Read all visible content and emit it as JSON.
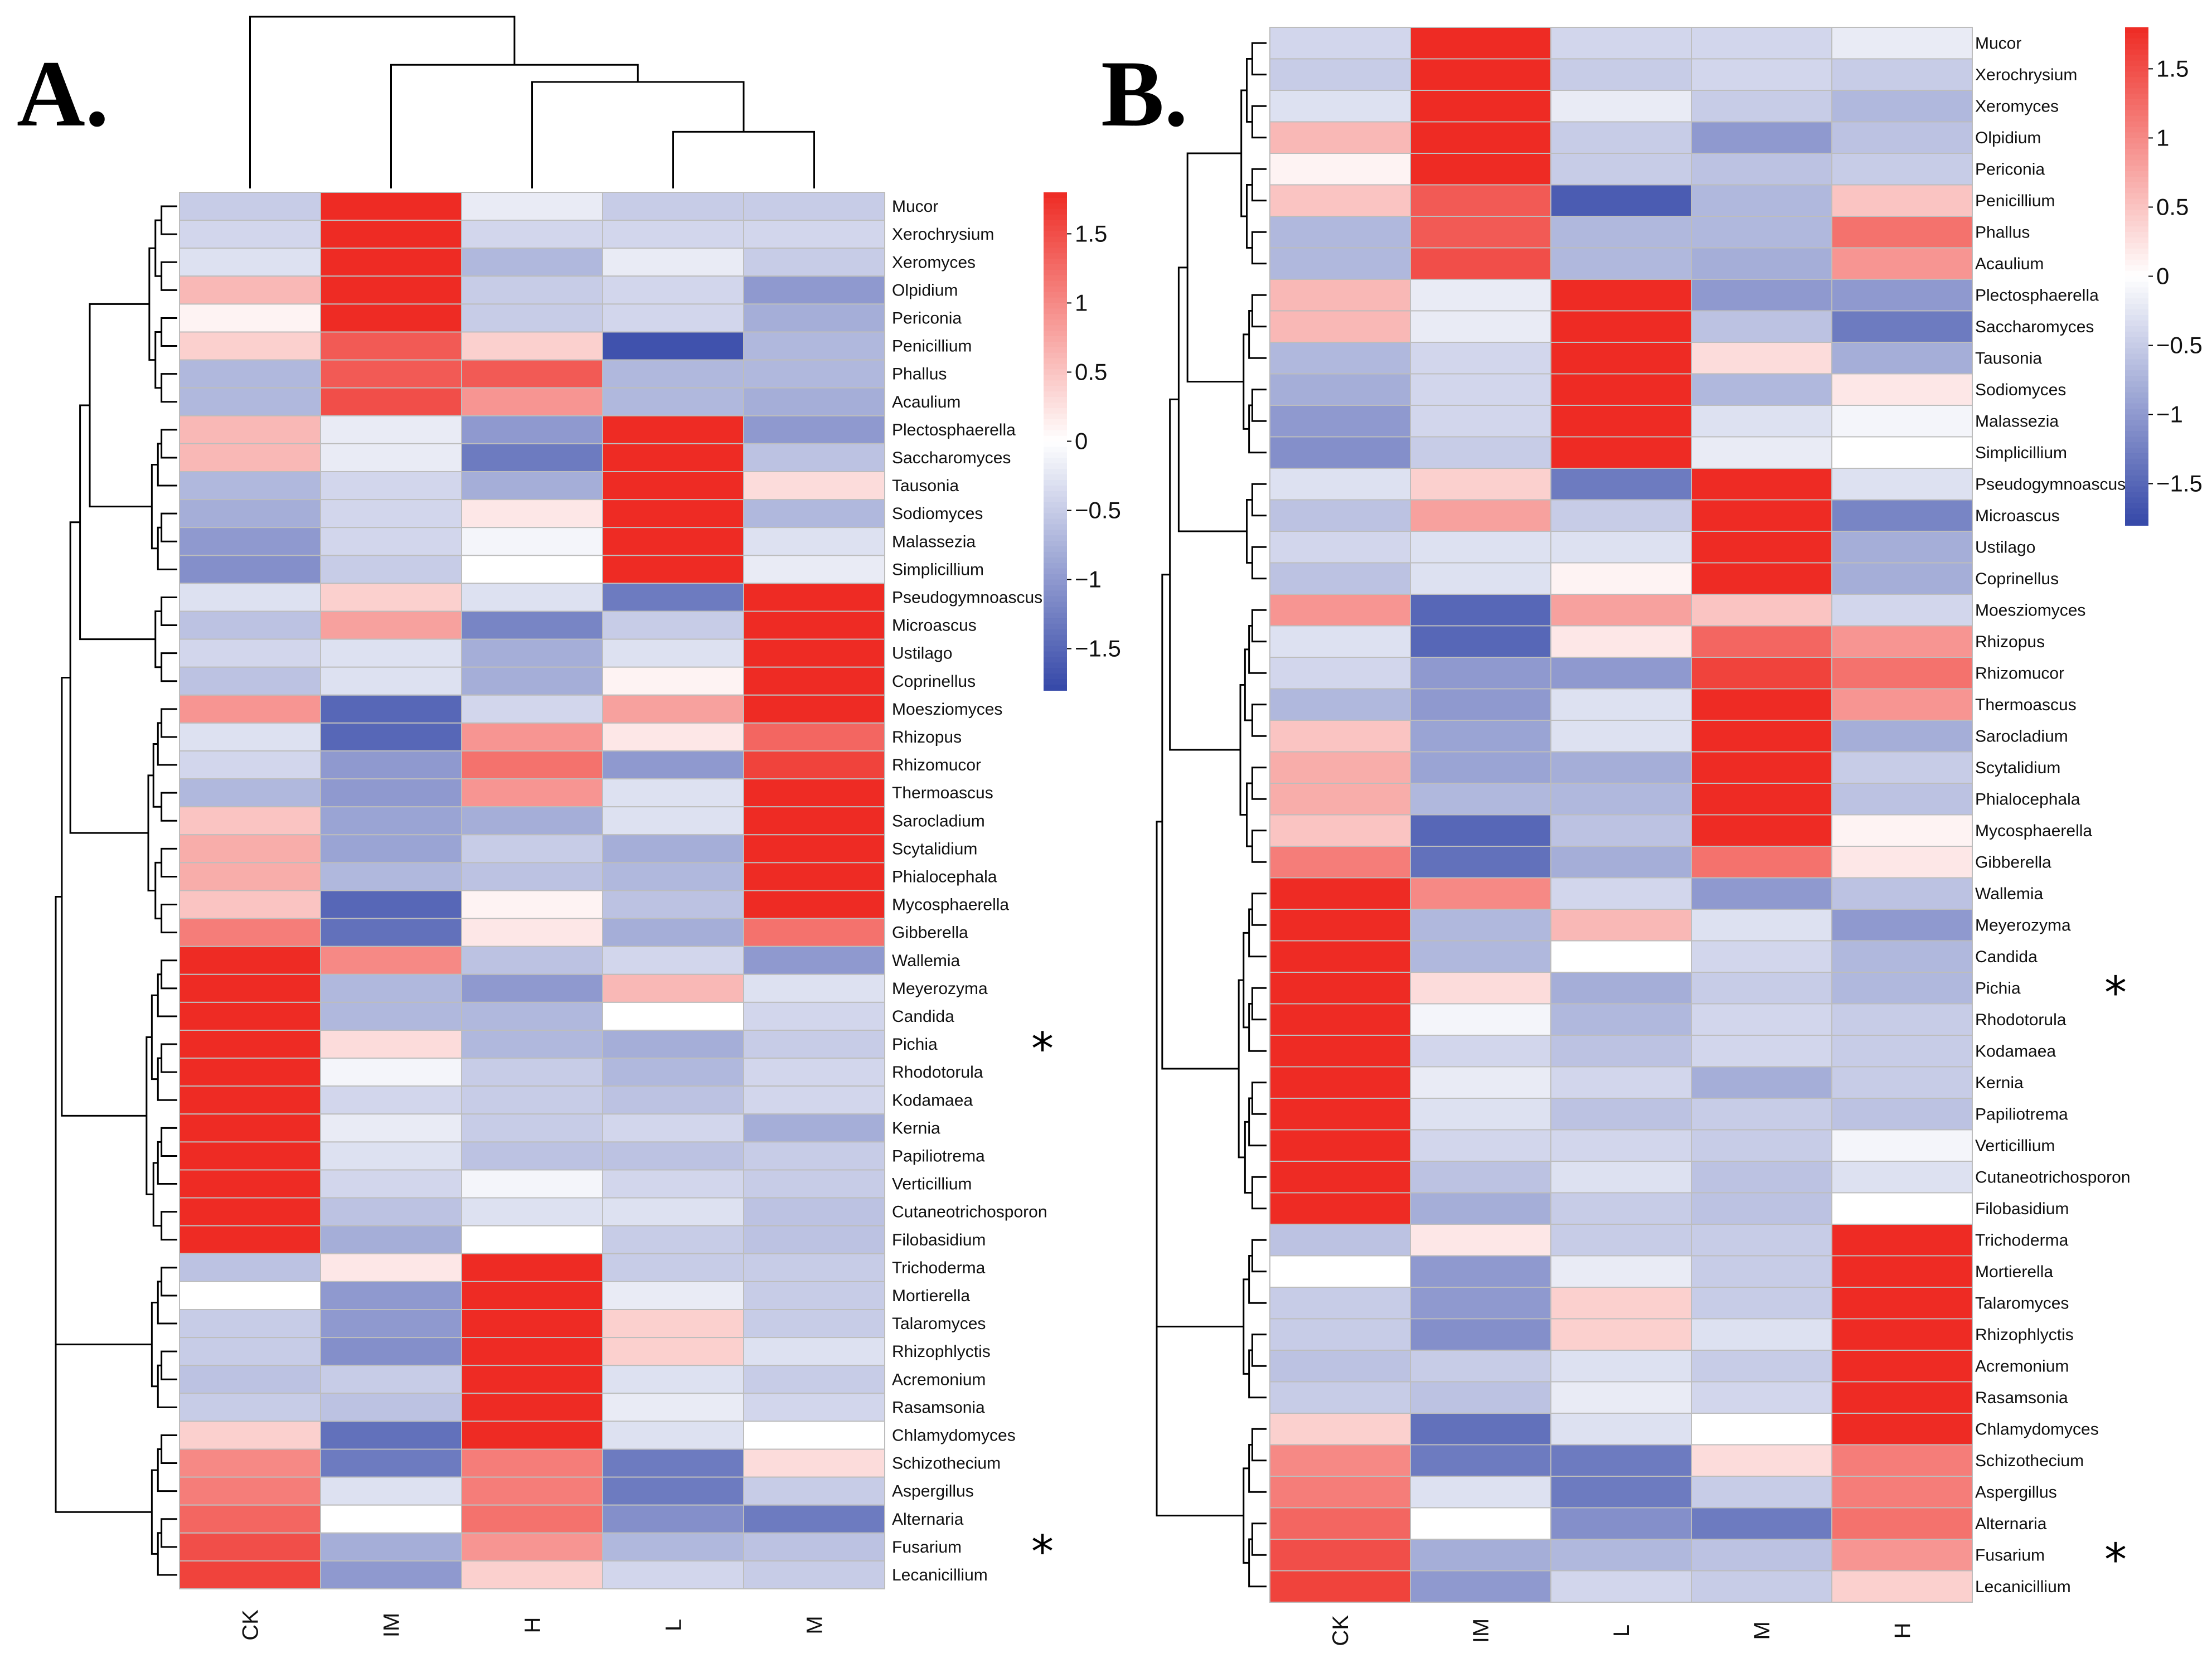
{
  "chart_data": [
    {
      "type": "heatmap",
      "panel_label": "A.",
      "columns": [
        "CK",
        "IM",
        "H",
        "L",
        "M"
      ],
      "rows": [
        "Mucor",
        "Xerochrysium",
        "Xeromyces",
        "Olpidium",
        "Periconia",
        "Penicillium",
        "Phallus",
        "Acaulium",
        "Plectosphaerella",
        "Saccharomyces",
        "Tausonia",
        "Sodiomyces",
        "Malassezia",
        "Simplicillium",
        "Pseudogymnoascus",
        "Microascus",
        "Ustilago",
        "Coprinellus",
        "Moesziomyces",
        "Rhizopus",
        "Rhizomucor",
        "Thermoascus",
        "Sarocladium",
        "Scytalidium",
        "Phialocephala",
        "Mycosphaerella",
        "Gibberella",
        "Wallemia",
        "Meyerozyma",
        "Candida",
        "Pichia",
        "Rhodotorula",
        "Kodamaea",
        "Kernia",
        "Papiliotrema",
        "Verticillium",
        "Cutaneotrichosporon",
        "Filobasidium",
        "Trichoderma",
        "Mortierella",
        "Talaromyces",
        "Rhizophlyctis",
        "Acremonium",
        "Rasamsonia",
        "Chlamydomyces",
        "Schizothecium",
        "Aspergillus",
        "Alternaria",
        "Fusarium",
        "Lecanicillium"
      ],
      "values": [
        [
          -0.5,
          1.8,
          -0.2,
          -0.5,
          -0.5
        ],
        [
          -0.4,
          1.8,
          -0.4,
          -0.4,
          -0.4
        ],
        [
          -0.3,
          1.8,
          -0.7,
          -0.2,
          -0.5
        ],
        [
          0.6,
          1.8,
          -0.5,
          -0.4,
          -1.0
        ],
        [
          0.1,
          1.8,
          -0.5,
          -0.4,
          -0.8
        ],
        [
          0.4,
          1.4,
          0.4,
          -1.7,
          -0.7
        ],
        [
          -0.7,
          1.4,
          1.4,
          -0.7,
          -0.7
        ],
        [
          -0.7,
          1.5,
          0.9,
          -0.7,
          -0.8
        ],
        [
          0.6,
          -0.2,
          -1.0,
          1.8,
          -1.0
        ],
        [
          0.6,
          -0.2,
          -1.3,
          1.8,
          -0.6
        ],
        [
          -0.7,
          -0.4,
          -0.8,
          1.8,
          0.3
        ],
        [
          -0.8,
          -0.4,
          0.2,
          1.8,
          -0.7
        ],
        [
          -1.0,
          -0.4,
          -0.1,
          1.8,
          -0.3
        ],
        [
          -1.1,
          -0.5,
          0.0,
          1.8,
          -0.2
        ],
        [
          -0.3,
          0.4,
          -0.3,
          -1.3,
          1.8
        ],
        [
          -0.6,
          0.8,
          -1.2,
          -0.5,
          1.8
        ],
        [
          -0.4,
          -0.3,
          -0.8,
          -0.3,
          1.8
        ],
        [
          -0.6,
          -0.3,
          -0.8,
          0.1,
          1.8
        ],
        [
          0.9,
          -1.5,
          -0.4,
          0.8,
          1.8
        ],
        [
          -0.3,
          -1.5,
          0.9,
          0.2,
          1.3
        ],
        [
          -0.4,
          -1.0,
          1.2,
          -1.0,
          1.6
        ],
        [
          -0.7,
          -1.0,
          0.9,
          -0.3,
          1.8
        ],
        [
          0.5,
          -0.9,
          -0.8,
          -0.3,
          1.8
        ],
        [
          0.7,
          -0.9,
          -0.5,
          -0.8,
          1.8
        ],
        [
          0.7,
          -0.7,
          -0.6,
          -0.7,
          1.8
        ],
        [
          0.5,
          -1.5,
          0.1,
          -0.6,
          1.8
        ],
        [
          1.1,
          -1.4,
          0.2,
          -0.8,
          1.2
        ],
        [
          1.8,
          1.0,
          -0.6,
          -0.4,
          -1.0
        ],
        [
          1.8,
          -0.7,
          -1.0,
          0.6,
          -0.3
        ],
        [
          1.8,
          -0.7,
          -0.7,
          0.0,
          -0.4
        ],
        [
          1.8,
          0.3,
          -0.7,
          -0.8,
          -0.5
        ],
        [
          1.8,
          -0.1,
          -0.5,
          -0.7,
          -0.4
        ],
        [
          1.8,
          -0.4,
          -0.5,
          -0.6,
          -0.4
        ],
        [
          1.8,
          -0.2,
          -0.5,
          -0.4,
          -0.8
        ],
        [
          1.8,
          -0.3,
          -0.6,
          -0.6,
          -0.5
        ],
        [
          1.8,
          -0.4,
          -0.1,
          -0.4,
          -0.5
        ],
        [
          1.8,
          -0.6,
          -0.3,
          -0.3,
          -0.6
        ],
        [
          1.8,
          -0.8,
          0.0,
          -0.5,
          -0.6
        ],
        [
          -0.6,
          0.2,
          1.8,
          -0.5,
          -0.5
        ],
        [
          0.0,
          -1.0,
          1.8,
          -0.2,
          -0.5
        ],
        [
          -0.5,
          -1.0,
          1.8,
          0.4,
          -0.5
        ],
        [
          -0.5,
          -1.1,
          1.8,
          0.4,
          -0.3
        ],
        [
          -0.6,
          -0.5,
          1.8,
          -0.3,
          -0.5
        ],
        [
          -0.5,
          -0.6,
          1.8,
          -0.2,
          -0.4
        ],
        [
          0.4,
          -1.4,
          1.8,
          -0.3,
          0.0
        ],
        [
          1.0,
          -1.3,
          1.1,
          -1.3,
          0.3
        ],
        [
          1.1,
          -0.3,
          1.1,
          -1.3,
          -0.5
        ],
        [
          1.3,
          0.0,
          1.2,
          -1.1,
          -1.3
        ],
        [
          1.5,
          -0.8,
          0.9,
          -0.7,
          -0.6
        ],
        [
          1.6,
          -1.0,
          0.4,
          -0.4,
          -0.5
        ]
      ],
      "starred_rows": [
        "Pichia",
        "Fusarium"
      ],
      "star_symbol": "*",
      "colorbar": {
        "min": -1.8,
        "max": 1.8,
        "ticks": [
          1.5,
          1,
          0.5,
          0,
          -0.5,
          -1,
          -1.5
        ],
        "tick_labels": [
          "1.5",
          "1",
          "0.5",
          "0",
          "−0.5",
          "−1",
          "−1.5"
        ],
        "colors": {
          "low": "#3548a8",
          "mid": "#ffffff",
          "high": "#ee2b24"
        }
      }
    },
    {
      "type": "heatmap",
      "panel_label": "B.",
      "columns": [
        "CK",
        "IM",
        "L",
        "M",
        "H"
      ],
      "rows": [
        "Mucor",
        "Xerochrysium",
        "Xeromyces",
        "Olpidium",
        "Periconia",
        "Penicillium",
        "Phallus",
        "Acaulium",
        "Plectosphaerella",
        "Saccharomyces",
        "Tausonia",
        "Sodiomyces",
        "Malassezia",
        "Simplicillium",
        "Pseudogymnoascus",
        "Microascus",
        "Ustilago",
        "Coprinellus",
        "Moesziomyces",
        "Rhizopus",
        "Rhizomucor",
        "Thermoascus",
        "Sarocladium",
        "Scytalidium",
        "Phialocephala",
        "Mycosphaerella",
        "Gibberella",
        "Wallemia",
        "Meyerozyma",
        "Candida",
        "Pichia",
        "Rhodotorula",
        "Kodamaea",
        "Kernia",
        "Papiliotrema",
        "Verticillium",
        "Cutaneotrichosporon",
        "Filobasidium",
        "Trichoderma",
        "Mortierella",
        "Talaromyces",
        "Rhizophlyctis",
        "Acremonium",
        "Rasamsonia",
        "Chlamydomyces",
        "Schizothecium",
        "Aspergillus",
        "Alternaria",
        "Fusarium",
        "Lecanicillium"
      ],
      "values": [
        [
          -0.4,
          1.8,
          -0.4,
          -0.4,
          -0.2
        ],
        [
          -0.5,
          1.8,
          -0.5,
          -0.4,
          -0.5
        ],
        [
          -0.3,
          1.8,
          -0.2,
          -0.5,
          -0.7
        ],
        [
          0.6,
          1.8,
          -0.5,
          -1.0,
          -0.6
        ],
        [
          0.1,
          1.8,
          -0.5,
          -0.6,
          -0.5
        ],
        [
          0.5,
          1.4,
          -1.6,
          -0.7,
          0.5
        ],
        [
          -0.7,
          1.4,
          -0.7,
          -0.7,
          1.2
        ],
        [
          -0.7,
          1.5,
          -0.7,
          -0.8,
          0.9
        ],
        [
          0.6,
          -0.2,
          1.8,
          -1.0,
          -1.0
        ],
        [
          0.6,
          -0.2,
          1.8,
          -0.6,
          -1.3
        ],
        [
          -0.7,
          -0.4,
          1.8,
          0.3,
          -0.8
        ],
        [
          -0.8,
          -0.4,
          1.8,
          -0.7,
          0.2
        ],
        [
          -1.0,
          -0.4,
          1.8,
          -0.3,
          -0.1
        ],
        [
          -1.1,
          -0.5,
          1.8,
          -0.2,
          0.0
        ],
        [
          -0.3,
          0.4,
          -1.3,
          1.8,
          -0.3
        ],
        [
          -0.6,
          0.8,
          -0.5,
          1.8,
          -1.2
        ],
        [
          -0.4,
          -0.3,
          -0.3,
          1.8,
          -0.8
        ],
        [
          -0.6,
          -0.3,
          0.1,
          1.8,
          -0.8
        ],
        [
          0.9,
          -1.5,
          0.8,
          0.5,
          -0.4
        ],
        [
          -0.3,
          -1.5,
          0.2,
          1.3,
          0.9
        ],
        [
          -0.4,
          -1.0,
          -1.0,
          1.6,
          1.2
        ],
        [
          -0.7,
          -1.0,
          -0.3,
          1.8,
          0.9
        ],
        [
          0.5,
          -0.9,
          -0.3,
          1.8,
          -0.8
        ],
        [
          0.7,
          -0.9,
          -0.8,
          1.8,
          -0.5
        ],
        [
          0.7,
          -0.7,
          -0.7,
          1.8,
          -0.6
        ],
        [
          0.5,
          -1.5,
          -0.6,
          1.8,
          0.1
        ],
        [
          1.1,
          -1.4,
          -0.8,
          1.2,
          0.2
        ],
        [
          1.8,
          1.0,
          -0.4,
          -1.0,
          -0.6
        ],
        [
          1.8,
          -0.7,
          0.6,
          -0.3,
          -1.0
        ],
        [
          1.8,
          -0.7,
          0.0,
          -0.4,
          -0.7
        ],
        [
          1.8,
          0.3,
          -0.8,
          -0.5,
          -0.7
        ],
        [
          1.8,
          -0.1,
          -0.7,
          -0.4,
          -0.5
        ],
        [
          1.8,
          -0.4,
          -0.6,
          -0.4,
          -0.5
        ],
        [
          1.8,
          -0.2,
          -0.4,
          -0.8,
          -0.5
        ],
        [
          1.8,
          -0.3,
          -0.6,
          -0.5,
          -0.6
        ],
        [
          1.8,
          -0.4,
          -0.4,
          -0.5,
          -0.1
        ],
        [
          1.8,
          -0.6,
          -0.3,
          -0.6,
          -0.3
        ],
        [
          1.8,
          -0.8,
          -0.5,
          -0.6,
          0.0
        ],
        [
          -0.6,
          0.2,
          -0.5,
          -0.5,
          1.8
        ],
        [
          0.0,
          -1.0,
          -0.2,
          -0.5,
          1.8
        ],
        [
          -0.5,
          -1.0,
          0.4,
          -0.5,
          1.8
        ],
        [
          -0.5,
          -1.1,
          0.4,
          -0.3,
          1.8
        ],
        [
          -0.6,
          -0.5,
          -0.3,
          -0.5,
          1.8
        ],
        [
          -0.5,
          -0.6,
          -0.2,
          -0.4,
          1.8
        ],
        [
          0.4,
          -1.4,
          -0.3,
          0.0,
          1.8
        ],
        [
          1.0,
          -1.3,
          -1.3,
          0.3,
          1.1
        ],
        [
          1.1,
          -0.3,
          -1.3,
          -0.5,
          1.1
        ],
        [
          1.3,
          0.0,
          -1.1,
          -1.3,
          1.2
        ],
        [
          1.5,
          -0.8,
          -0.7,
          -0.6,
          0.9
        ],
        [
          1.6,
          -1.0,
          -0.4,
          -0.5,
          0.4
        ]
      ],
      "starred_rows": [
        "Pichia",
        "Fusarium"
      ],
      "star_symbol": "*",
      "colorbar": {
        "min": -1.8,
        "max": 1.8,
        "ticks": [
          1.5,
          1,
          0.5,
          0,
          -0.5,
          -1,
          -1.5
        ],
        "tick_labels": [
          "1.5",
          "1",
          "0.5",
          "0",
          "−0.5",
          "−1",
          "−1.5"
        ],
        "colors": {
          "low": "#3548a8",
          "mid": "#ffffff",
          "high": "#ee2b24"
        }
      }
    }
  ]
}
